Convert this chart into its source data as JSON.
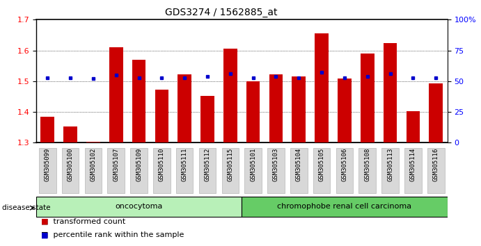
{
  "title": "GDS3274 / 1562885_at",
  "samples": [
    "GSM305099",
    "GSM305100",
    "GSM305102",
    "GSM305107",
    "GSM305109",
    "GSM305110",
    "GSM305111",
    "GSM305112",
    "GSM305115",
    "GSM305101",
    "GSM305103",
    "GSM305104",
    "GSM305105",
    "GSM305106",
    "GSM305108",
    "GSM305113",
    "GSM305114",
    "GSM305116"
  ],
  "bar_values": [
    1.385,
    1.352,
    1.302,
    1.61,
    1.57,
    1.472,
    1.523,
    1.453,
    1.605,
    1.5,
    1.522,
    1.516,
    1.655,
    1.508,
    1.59,
    1.625,
    1.402,
    1.492
  ],
  "blue_pct": [
    53,
    53,
    52,
    55,
    53,
    53,
    53,
    54,
    56,
    53,
    54,
    53,
    57,
    53,
    54,
    56,
    53,
    53
  ],
  "bar_color": "#cc0000",
  "blue_color": "#0000cc",
  "ylim_left": [
    1.3,
    1.7
  ],
  "ylim_right": [
    0,
    100
  ],
  "group1_label": "oncocytoma",
  "group1_count": 9,
  "group2_label": "chromophobe renal cell carcinoma",
  "group2_count": 9,
  "group1_color": "#b8f0b8",
  "group2_color": "#66cc66",
  "disease_state_label": "disease state",
  "legend1": "transformed count",
  "legend2": "percentile rank within the sample",
  "background_color": "#ffffff",
  "tick_label_fontsize": 6.5,
  "title_fontsize": 10,
  "right_tick_labels": [
    "0",
    "25",
    "50",
    "75",
    "100%"
  ]
}
